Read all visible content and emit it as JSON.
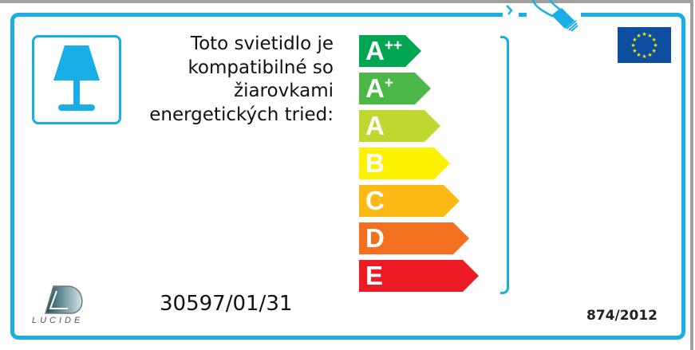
{
  "label": {
    "intro_text": "Toto svietidlo je kompatibilné so žiarovkami energetických tried:",
    "classes": [
      {
        "label": "A",
        "sup": "++",
        "color": "#00a651"
      },
      {
        "label": "A",
        "sup": "+",
        "color": "#4cb848"
      },
      {
        "label": "A",
        "sup": "",
        "color": "#bfd730"
      },
      {
        "label": "B",
        "sup": "",
        "color": "#fff200"
      },
      {
        "label": "C",
        "sup": "",
        "color": "#fdb913"
      },
      {
        "label": "D",
        "sup": "",
        "color": "#f37021"
      },
      {
        "label": "E",
        "sup": "",
        "color": "#ed1c24"
      }
    ],
    "model_number": "30597/01/31",
    "regulation": "874/2012",
    "brand": "LUCIDE",
    "accent_color": "#19aee5",
    "icons": [
      "table-lamp-icon",
      "light-bulb-icon",
      "eu-flag-icon"
    ]
  }
}
